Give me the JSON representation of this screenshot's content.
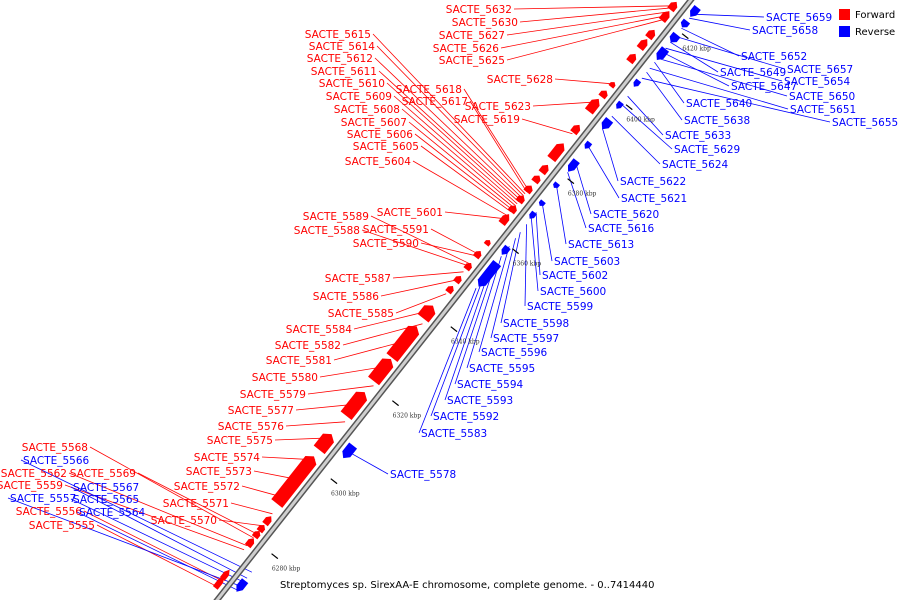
{
  "caption": "Streptomyces sp. SirexAA-E chromosome, complete genome. - 0..7414440",
  "legend": [
    {
      "label": "Forward",
      "color": "#ff0000"
    },
    {
      "label": "Reverse",
      "color": "#0000ff"
    }
  ],
  "colors": {
    "forward": "#ff0000",
    "reverse": "#0000ff",
    "backbone": "#999999"
  },
  "ticks": [
    "6280 kbp",
    "6300 kbp",
    "6320 kbp",
    "6340 kbp",
    "6360 kbp",
    "6380 kbp",
    "6400 kbp",
    "6420 kbp"
  ],
  "forward_labels": [
    "SACTE_5632",
    "SACTE_5630",
    "SACTE_5627",
    "SACTE_5626",
    "SACTE_5625",
    "SACTE_5628",
    "SACTE_5615",
    "SACTE_5614",
    "SACTE_5612",
    "SACTE_5611",
    "SACTE_5610",
    "SACTE_5618",
    "SACTE_5609",
    "SACTE_5617",
    "SACTE_5623",
    "SACTE_5608",
    "SACTE_5619",
    "SACTE_5607",
    "SACTE_5606",
    "SACTE_5605",
    "SACTE_5604",
    "SACTE_5601",
    "SACTE_5589",
    "SACTE_5591",
    "SACTE_5588",
    "SACTE_5590",
    "SACTE_5587",
    "SACTE_5586",
    "SACTE_5585",
    "SACTE_5584",
    "SACTE_5582",
    "SACTE_5581",
    "SACTE_5580",
    "SACTE_5579",
    "SACTE_5577",
    "SACTE_5576",
    "SACTE_5575",
    "SACTE_5574",
    "SACTE_5573",
    "SACTE_5572",
    "SACTE_5571",
    "SACTE_5570",
    "SACTE_5568",
    "SACTE_5569",
    "SACTE_5562",
    "SACTE_5559",
    "SACTE_5556",
    "SACTE_5555"
  ],
  "reverse_labels": [
    "SACTE_5659",
    "SACTE_5658",
    "SACTE_5652",
    "SACTE_5657",
    "SACTE_5649",
    "SACTE_5654",
    "SACTE_5647",
    "SACTE_5650",
    "SACTE_5640",
    "SACTE_5651",
    "SACTE_5638",
    "SACTE_5655",
    "SACTE_5633",
    "SACTE_5629",
    "SACTE_5624",
    "SACTE_5622",
    "SACTE_5621",
    "SACTE_5620",
    "SACTE_5616",
    "SACTE_5613",
    "SACTE_5603",
    "SACTE_5602",
    "SACTE_5600",
    "SACTE_5599",
    "SACTE_5598",
    "SACTE_5597",
    "SACTE_5596",
    "SACTE_5595",
    "SACTE_5594",
    "SACTE_5593",
    "SACTE_5592",
    "SACTE_5583",
    "SACTE_5578",
    "SACTE_5566",
    "SACTE_5567",
    "SACTE_5565",
    "SACTE_5557",
    "SACTE_5564"
  ]
}
